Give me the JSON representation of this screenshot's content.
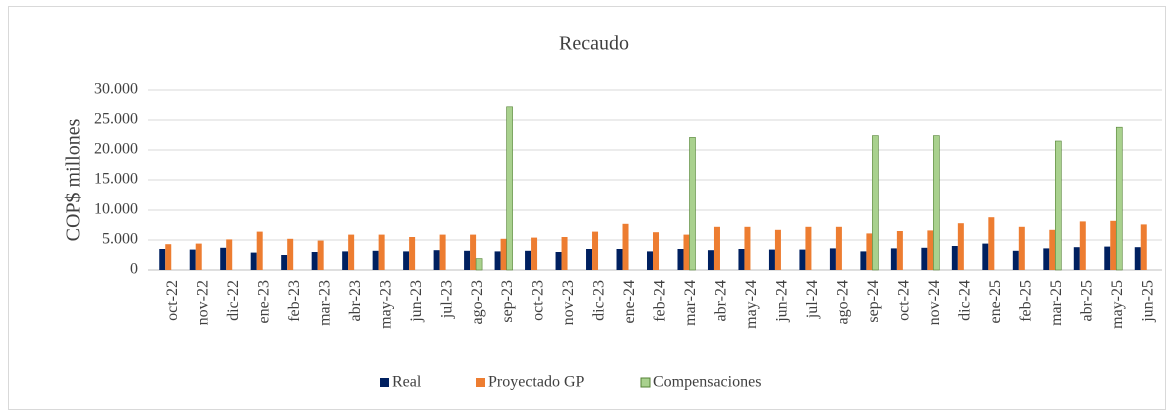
{
  "chart_data": {
    "type": "bar",
    "title": "Recaudo",
    "y_label": "COP$ millones",
    "categories": [
      "oct-22",
      "nov-22",
      "dic-22",
      "ene-23",
      "feb-23",
      "mar-23",
      "abr-23",
      "may-23",
      "jun-23",
      "jul-23",
      "ago-23",
      "sep-23",
      "oct-23",
      "nov-23",
      "dic-23",
      "ene-24",
      "feb-24",
      "mar-24",
      "abr-24",
      "may-24",
      "jun-24",
      "jul-24",
      "ago-24",
      "sep-24",
      "oct-24",
      "nov-24",
      "dic-24",
      "ene-25",
      "feb-25",
      "mar-25",
      "abr-25",
      "may-25",
      "jun-25"
    ],
    "series": [
      {
        "name": "Real",
        "color": "#002060",
        "values": [
          3500,
          3400,
          3700,
          2900,
          2500,
          3000,
          3100,
          3200,
          3100,
          3300,
          3200,
          3100,
          3200,
          3000,
          3500,
          3500,
          3100,
          3500,
          3300,
          3500,
          3400,
          3400,
          3600,
          3100,
          3600,
          3700,
          4000,
          4400,
          3200,
          3600,
          3800,
          3900,
          3800
        ]
      },
      {
        "name": "Proyectado GP",
        "color": "#ed7d31",
        "values": [
          4300,
          4400,
          5100,
          6400,
          5200,
          4900,
          5900,
          5900,
          5500,
          5900,
          5900,
          5200,
          5400,
          5500,
          6400,
          7700,
          6300,
          5900,
          7200,
          7200,
          6700,
          7200,
          7200,
          6100,
          6500,
          6600,
          7800,
          8800,
          7200,
          6700,
          8100,
          8200,
          7600
        ]
      },
      {
        "name": "Compensaciones",
        "color": "#a9d18e",
        "values": [
          null,
          null,
          null,
          null,
          null,
          null,
          null,
          null,
          null,
          null,
          1900,
          27200,
          null,
          null,
          null,
          null,
          null,
          22100,
          null,
          null,
          null,
          null,
          null,
          22400,
          null,
          22400,
          null,
          null,
          null,
          21500,
          null,
          23800,
          null
        ]
      }
    ],
    "ylim": [
      0,
      30000
    ],
    "yticks": [
      0,
      {
        "value": 5000,
        "label": "5.000"
      },
      {
        "value": 10000,
        "label": "10.000"
      },
      {
        "value": 15000,
        "label": "15.000"
      },
      {
        "value": 20000,
        "label": "20.000"
      },
      {
        "value": 25000,
        "label": "25.000"
      },
      {
        "value": 30000,
        "label": "30.000"
      }
    ],
    "grid": true,
    "legend": "bottom"
  }
}
